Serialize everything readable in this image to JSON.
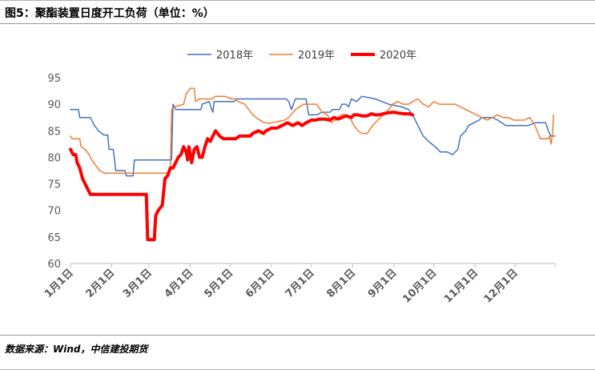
{
  "header": {
    "title": "图5：聚酯装置日度开工负荷（单位：%）"
  },
  "footer": {
    "source": "数据来源：Wind，中信建投期货"
  },
  "chart_data": {
    "type": "line",
    "title": "图5：聚酯装置日度开工负荷（单位：%）",
    "xlabel": "",
    "ylabel": "",
    "ylim": [
      60,
      95
    ],
    "yticks": [
      60,
      65,
      70,
      75,
      80,
      85,
      90,
      95
    ],
    "x_domain": [
      1,
      365
    ],
    "x_tick_labels": [
      "1月1日",
      "2月1日",
      "3月1日",
      "4月1日",
      "5月1日",
      "6月1日",
      "7月1日",
      "8月1日",
      "9月1日",
      "10月1日",
      "11月1日",
      "12月1日"
    ],
    "x_tick_days": [
      1,
      32,
      60,
      91,
      121,
      152,
      182,
      213,
      244,
      274,
      305,
      335
    ],
    "grid": false,
    "legend": "top-center",
    "series": [
      {
        "name": "2018年",
        "color": "#4472c4",
        "width": 1.5,
        "points": [
          [
            1,
            89
          ],
          [
            7,
            89
          ],
          [
            8,
            87.5
          ],
          [
            16,
            87.5
          ],
          [
            19,
            86
          ],
          [
            22,
            85
          ],
          [
            26,
            84.2
          ],
          [
            29,
            84.2
          ],
          [
            30,
            81.5
          ],
          [
            33,
            81.5
          ],
          [
            34,
            80
          ],
          [
            35,
            77.5
          ],
          [
            42,
            77.5
          ],
          [
            43,
            76.5
          ],
          [
            48,
            76.5
          ],
          [
            49,
            79.5
          ],
          [
            77,
            79.5
          ],
          [
            78,
            90
          ],
          [
            80,
            89
          ],
          [
            99,
            89
          ],
          [
            100,
            90
          ],
          [
            105,
            90.5
          ],
          [
            108,
            88.5
          ],
          [
            109,
            90.5
          ],
          [
            124,
            90.5
          ],
          [
            126,
            91
          ],
          [
            163,
            91
          ],
          [
            165,
            90.5
          ],
          [
            167,
            89
          ],
          [
            170,
            91
          ],
          [
            178,
            91
          ],
          [
            180,
            88
          ],
          [
            186,
            88
          ],
          [
            190,
            88.5
          ],
          [
            196,
            88.5
          ],
          [
            198,
            89
          ],
          [
            203,
            89
          ],
          [
            205,
            90
          ],
          [
            208,
            90
          ],
          [
            210,
            89.5
          ],
          [
            212,
            91
          ],
          [
            216,
            90.5
          ],
          [
            220,
            91.5
          ],
          [
            230,
            91
          ],
          [
            240,
            90
          ],
          [
            250,
            89.5
          ],
          [
            255,
            89
          ],
          [
            258,
            88
          ],
          [
            262,
            86
          ],
          [
            266,
            84
          ],
          [
            270,
            83
          ],
          [
            275,
            82
          ],
          [
            279,
            81
          ],
          [
            284,
            81
          ],
          [
            288,
            80.5
          ],
          [
            292,
            81.5
          ],
          [
            294,
            84
          ],
          [
            298,
            85
          ],
          [
            300,
            86
          ],
          [
            304,
            86.5
          ],
          [
            308,
            87
          ],
          [
            310,
            87.5
          ],
          [
            318,
            87.5
          ],
          [
            322,
            87
          ],
          [
            325,
            86.5
          ],
          [
            328,
            86
          ],
          [
            345,
            86
          ],
          [
            350,
            86.5
          ],
          [
            358,
            86.5
          ],
          [
            360,
            85
          ],
          [
            362,
            84
          ],
          [
            365,
            84
          ]
        ]
      },
      {
        "name": "2019年",
        "color": "#ed7d31",
        "width": 1.5,
        "points": [
          [
            1,
            84
          ],
          [
            2,
            83.5
          ],
          [
            8,
            83.5
          ],
          [
            9,
            82
          ],
          [
            12,
            81.5
          ],
          [
            15,
            80.5
          ],
          [
            17,
            79.5
          ],
          [
            20,
            78.5
          ],
          [
            23,
            77.5
          ],
          [
            27,
            77
          ],
          [
            57,
            77
          ],
          [
            60,
            77
          ],
          [
            73,
            77
          ],
          [
            76,
            77.5
          ],
          [
            77,
            89
          ],
          [
            79,
            89.5
          ],
          [
            86,
            90
          ],
          [
            88,
            92
          ],
          [
            91,
            93
          ],
          [
            94,
            93
          ],
          [
            95,
            90.5
          ],
          [
            98,
            91
          ],
          [
            107,
            91
          ],
          [
            110,
            91.5
          ],
          [
            117,
            91.5
          ],
          [
            122,
            91
          ],
          [
            125,
            91
          ],
          [
            127,
            90.5
          ],
          [
            132,
            90
          ],
          [
            135,
            89
          ],
          [
            138,
            88
          ],
          [
            142,
            87.2
          ],
          [
            146,
            86.6
          ],
          [
            150,
            86.4
          ],
          [
            154,
            86.6
          ],
          [
            158,
            86.8
          ],
          [
            162,
            87
          ],
          [
            165,
            87.5
          ],
          [
            170,
            89
          ],
          [
            173,
            89.5
          ],
          [
            176,
            90
          ],
          [
            186,
            90
          ],
          [
            190,
            88.5
          ],
          [
            194,
            88
          ],
          [
            197,
            86.5
          ],
          [
            200,
            87
          ],
          [
            204,
            88
          ],
          [
            208,
            88
          ],
          [
            211,
            87.5
          ],
          [
            214,
            86
          ],
          [
            217,
            85
          ],
          [
            220,
            84.5
          ],
          [
            224,
            84.5
          ],
          [
            228,
            86
          ],
          [
            232,
            87
          ],
          [
            236,
            88
          ],
          [
            240,
            89
          ],
          [
            243,
            90
          ],
          [
            247,
            90.5
          ],
          [
            251,
            90
          ],
          [
            255,
            90
          ],
          [
            258,
            90.5
          ],
          [
            262,
            91
          ],
          [
            266,
            90
          ],
          [
            270,
            89.5
          ],
          [
            274,
            90.5
          ],
          [
            278,
            90
          ],
          [
            290,
            90
          ],
          [
            294,
            89.5
          ],
          [
            298,
            89
          ],
          [
            302,
            88.5
          ],
          [
            306,
            88
          ],
          [
            310,
            87.5
          ],
          [
            314,
            87
          ],
          [
            318,
            87.5
          ],
          [
            322,
            88
          ],
          [
            326,
            87.5
          ],
          [
            330,
            87.5
          ],
          [
            334,
            87
          ],
          [
            338,
            87
          ],
          [
            342,
            87
          ],
          [
            346,
            87.5
          ],
          [
            350,
            86
          ],
          [
            354,
            83.5
          ],
          [
            358,
            83.5
          ],
          [
            360,
            83.5
          ],
          [
            361,
            84
          ],
          [
            362,
            82.5
          ],
          [
            363,
            84
          ],
          [
            364,
            88
          ]
        ]
      },
      {
        "name": "2020年",
        "color": "#ff0000",
        "width": 4,
        "points": [
          [
            1,
            81.5
          ],
          [
            3,
            80.5
          ],
          [
            5,
            80.5
          ],
          [
            6,
            79
          ],
          [
            8,
            78
          ],
          [
            10,
            76
          ],
          [
            12,
            75
          ],
          [
            14,
            74
          ],
          [
            16,
            73
          ],
          [
            58,
            73
          ],
          [
            59,
            64.5
          ],
          [
            64,
            64.5
          ],
          [
            65,
            69
          ],
          [
            67,
            70
          ],
          [
            70,
            71
          ],
          [
            72,
            76
          ],
          [
            74,
            76.5
          ],
          [
            76,
            78
          ],
          [
            78,
            78
          ],
          [
            80,
            79
          ],
          [
            82,
            80
          ],
          [
            84,
            80.5
          ],
          [
            86,
            82
          ],
          [
            88,
            81
          ],
          [
            89,
            79.5
          ],
          [
            90,
            82
          ],
          [
            92,
            79
          ],
          [
            94,
            81.5
          ],
          [
            96,
            82
          ],
          [
            98,
            80
          ],
          [
            100,
            80
          ],
          [
            102,
            82
          ],
          [
            104,
            83.5
          ],
          [
            106,
            83
          ],
          [
            108,
            84
          ],
          [
            110,
            85
          ],
          [
            113,
            84
          ],
          [
            116,
            83.5
          ],
          [
            125,
            83.5
          ],
          [
            128,
            84
          ],
          [
            136,
            84
          ],
          [
            138,
            84.5
          ],
          [
            142,
            85
          ],
          [
            146,
            84.5
          ],
          [
            148,
            85
          ],
          [
            152,
            85.5
          ],
          [
            156,
            85.5
          ],
          [
            160,
            86
          ],
          [
            164,
            86.5
          ],
          [
            168,
            86
          ],
          [
            172,
            86.5
          ],
          [
            175,
            86
          ],
          [
            178,
            86.5
          ],
          [
            182,
            87
          ],
          [
            185,
            87
          ],
          [
            188,
            87.2
          ],
          [
            192,
            87.2
          ],
          [
            196,
            87
          ],
          [
            199,
            87.5
          ],
          [
            202,
            87.2
          ],
          [
            205,
            87.5
          ],
          [
            208,
            87.8
          ],
          [
            212,
            87.5
          ],
          [
            214,
            88
          ],
          [
            217,
            88
          ],
          [
            220,
            87.8
          ],
          [
            224,
            87.8
          ],
          [
            227,
            88.2
          ],
          [
            230,
            88
          ],
          [
            233,
            88
          ],
          [
            236,
            88.2
          ],
          [
            240,
            88.4
          ],
          [
            244,
            88.5
          ],
          [
            248,
            88.3
          ],
          [
            252,
            88.2
          ],
          [
            256,
            88.2
          ],
          [
            258,
            88
          ]
        ]
      }
    ]
  }
}
